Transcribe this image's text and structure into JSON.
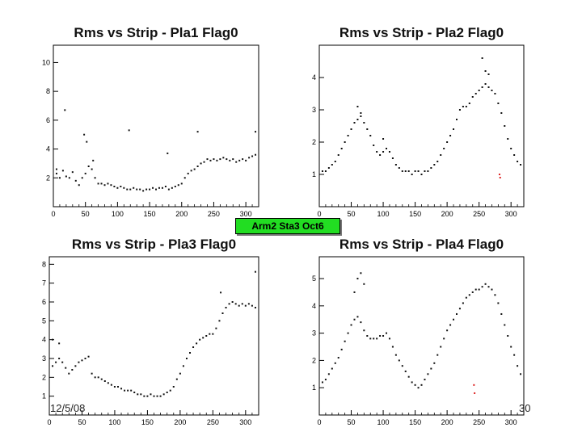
{
  "banner": "Arm2 Sta3 Oct6",
  "footer": {
    "date": "12/5/08",
    "page": "30"
  },
  "chart_data": [
    {
      "type": "scatter",
      "title": "Rms vs Strip - Pla1 Flag0",
      "xlim": [
        0,
        320
      ],
      "ylim": [
        0,
        11.2
      ],
      "xticks": [
        0,
        50,
        100,
        150,
        200,
        250,
        300
      ],
      "yticks": [
        2,
        4,
        6,
        8,
        10
      ],
      "grid": false,
      "series": [
        {
          "color": "#111111",
          "x": [
            5,
            10,
            15,
            20,
            25,
            30,
            35,
            40,
            45,
            50,
            55,
            60,
            65,
            70,
            75,
            80,
            85,
            90,
            95,
            100,
            105,
            110,
            115,
            120,
            125,
            130,
            135,
            140,
            145,
            150,
            155,
            160,
            165,
            170,
            175,
            180,
            185,
            190,
            195,
            200,
            205,
            210,
            215,
            220,
            225,
            230,
            235,
            240,
            245,
            250,
            255,
            260,
            265,
            270,
            275,
            280,
            285,
            290,
            295,
            300,
            305,
            310,
            315
          ],
          "y": [
            2.3,
            2.0,
            2.5,
            2.1,
            2.0,
            2.4,
            1.8,
            1.5,
            2.0,
            2.3,
            2.8,
            2.6,
            2.0,
            1.6,
            1.6,
            1.5,
            1.6,
            1.5,
            1.4,
            1.3,
            1.4,
            1.3,
            1.2,
            1.2,
            1.3,
            1.2,
            1.2,
            1.1,
            1.2,
            1.2,
            1.3,
            1.2,
            1.3,
            1.3,
            1.4,
            1.2,
            1.3,
            1.4,
            1.5,
            1.6,
            2.0,
            2.3,
            2.5,
            2.6,
            2.8,
            3.0,
            3.1,
            3.3,
            3.2,
            3.3,
            3.2,
            3.3,
            3.4,
            3.3,
            3.2,
            3.3,
            3.1,
            3.2,
            3.3,
            3.2,
            3.4,
            3.5,
            3.6
          ]
        },
        {
          "color": "#111111",
          "x": [
            5,
            18,
            48,
            52,
            62,
            118,
            178,
            225,
            315
          ],
          "y": [
            2.6,
            6.7,
            5.0,
            4.5,
            3.2,
            5.3,
            3.7,
            5.2,
            5.2
          ]
        }
      ]
    },
    {
      "type": "scatter",
      "title": "Rms vs Strip - Pla2 Flag0",
      "xlim": [
        0,
        320
      ],
      "ylim": [
        0,
        5.0
      ],
      "xticks": [
        0,
        50,
        100,
        150,
        200,
        250,
        300
      ],
      "yticks": [
        1,
        2,
        3,
        4
      ],
      "grid": false,
      "series": [
        {
          "color": "#111111",
          "x": [
            5,
            10,
            15,
            20,
            25,
            30,
            35,
            40,
            45,
            50,
            55,
            60,
            65,
            70,
            75,
            80,
            85,
            90,
            95,
            100,
            105,
            110,
            115,
            120,
            125,
            130,
            135,
            140,
            145,
            150,
            155,
            160,
            165,
            170,
            175,
            180,
            185,
            190,
            195,
            200,
            205,
            210,
            215,
            220,
            225,
            230,
            235,
            240,
            245,
            250,
            255,
            260,
            265,
            270,
            275,
            280,
            285,
            290,
            295,
            300,
            305,
            310,
            315
          ],
          "y": [
            1.1,
            1.1,
            1.2,
            1.3,
            1.4,
            1.6,
            1.8,
            2.0,
            2.2,
            2.4,
            2.6,
            2.7,
            2.8,
            2.6,
            2.4,
            2.2,
            1.9,
            1.7,
            1.6,
            1.7,
            1.8,
            1.7,
            1.5,
            1.3,
            1.2,
            1.1,
            1.1,
            1.1,
            1.0,
            1.1,
            1.1,
            1.0,
            1.1,
            1.1,
            1.2,
            1.3,
            1.4,
            1.6,
            1.8,
            2.0,
            2.2,
            2.4,
            2.7,
            3.0,
            3.1,
            3.1,
            3.2,
            3.4,
            3.5,
            3.6,
            3.7,
            3.8,
            3.7,
            3.6,
            3.5,
            3.2,
            2.9,
            2.5,
            2.1,
            1.8,
            1.6,
            1.4,
            1.3
          ]
        },
        {
          "color": "#111111",
          "x": [
            60,
            65,
            100,
            255,
            260,
            265
          ],
          "y": [
            3.1,
            2.9,
            2.1,
            4.6,
            4.2,
            4.1
          ]
        },
        {
          "color": "#dd2222",
          "x": [
            282,
            283
          ],
          "y": [
            1.0,
            0.9
          ]
        }
      ]
    },
    {
      "type": "scatter",
      "title": "Rms vs Strip - Pla3 Flag0",
      "xlim": [
        0,
        320
      ],
      "ylim": [
        0,
        8.4
      ],
      "xticks": [
        0,
        50,
        100,
        150,
        200,
        250,
        300
      ],
      "yticks": [
        1,
        2,
        3,
        4,
        5,
        6,
        7,
        8
      ],
      "grid": false,
      "series": [
        {
          "color": "#111111",
          "x": [
            5,
            10,
            15,
            20,
            25,
            30,
            35,
            40,
            45,
            50,
            55,
            60,
            65,
            70,
            75,
            80,
            85,
            90,
            95,
            100,
            105,
            110,
            115,
            120,
            125,
            130,
            135,
            140,
            145,
            150,
            155,
            160,
            165,
            170,
            175,
            180,
            185,
            190,
            195,
            200,
            205,
            210,
            215,
            220,
            225,
            230,
            235,
            240,
            245,
            250,
            255,
            260,
            265,
            270,
            275,
            280,
            285,
            290,
            295,
            300,
            305,
            310,
            315
          ],
          "y": [
            2.6,
            2.8,
            3.0,
            2.8,
            2.5,
            2.2,
            2.4,
            2.6,
            2.8,
            2.9,
            3.0,
            3.1,
            2.2,
            2.0,
            2.0,
            1.9,
            1.8,
            1.7,
            1.6,
            1.5,
            1.5,
            1.4,
            1.3,
            1.3,
            1.3,
            1.2,
            1.1,
            1.1,
            1.0,
            1.0,
            1.1,
            1.0,
            1.0,
            1.0,
            1.1,
            1.2,
            1.3,
            1.5,
            1.9,
            2.2,
            2.6,
            3.0,
            3.3,
            3.6,
            3.8,
            4.0,
            4.1,
            4.2,
            4.3,
            4.3,
            4.6,
            5.0,
            5.4,
            5.7,
            5.9,
            6.0,
            5.9,
            5.8,
            5.9,
            5.8,
            5.9,
            5.8,
            5.7
          ]
        },
        {
          "color": "#111111",
          "x": [
            5,
            15,
            262,
            315
          ],
          "y": [
            4.0,
            3.8,
            6.5,
            7.6
          ]
        }
      ]
    },
    {
      "type": "scatter",
      "title": "Rms vs Strip - Pla4 Flag0",
      "xlim": [
        0,
        320
      ],
      "ylim": [
        0,
        5.8
      ],
      "xticks": [
        0,
        50,
        100,
        150,
        200,
        250,
        300
      ],
      "yticks": [
        1,
        2,
        3,
        4,
        5
      ],
      "grid": false,
      "series": [
        {
          "color": "#111111",
          "x": [
            5,
            10,
            15,
            20,
            25,
            30,
            35,
            40,
            45,
            50,
            55,
            60,
            65,
            70,
            75,
            80,
            85,
            90,
            95,
            100,
            105,
            110,
            115,
            120,
            125,
            130,
            135,
            140,
            145,
            150,
            155,
            160,
            165,
            170,
            175,
            180,
            185,
            190,
            195,
            200,
            205,
            210,
            215,
            220,
            225,
            230,
            235,
            240,
            245,
            250,
            255,
            260,
            265,
            270,
            275,
            280,
            285,
            290,
            295,
            300,
            305,
            310,
            315
          ],
          "y": [
            1.2,
            1.3,
            1.5,
            1.7,
            1.9,
            2.1,
            2.4,
            2.7,
            3.0,
            3.3,
            3.5,
            3.6,
            3.4,
            3.1,
            2.9,
            2.8,
            2.8,
            2.8,
            2.9,
            2.9,
            3.0,
            2.8,
            2.5,
            2.2,
            2.0,
            1.8,
            1.6,
            1.4,
            1.2,
            1.1,
            1.0,
            1.1,
            1.3,
            1.5,
            1.7,
            1.9,
            2.2,
            2.5,
            2.8,
            3.1,
            3.3,
            3.5,
            3.7,
            3.9,
            4.1,
            4.3,
            4.4,
            4.5,
            4.6,
            4.6,
            4.7,
            4.8,
            4.7,
            4.6,
            4.4,
            4.1,
            3.7,
            3.3,
            2.9,
            2.5,
            2.2,
            1.8,
            1.5
          ]
        },
        {
          "color": "#111111",
          "x": [
            55,
            60,
            65,
            70
          ],
          "y": [
            4.5,
            5.0,
            5.2,
            4.8
          ]
        },
        {
          "color": "#dd2222",
          "x": [
            242,
            243
          ],
          "y": [
            1.1,
            0.8
          ]
        }
      ]
    }
  ]
}
